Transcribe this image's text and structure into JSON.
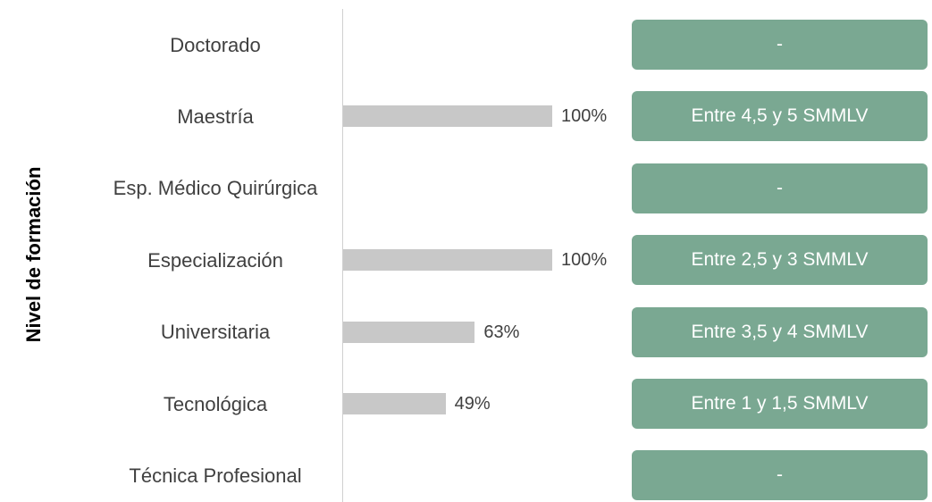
{
  "chart_data": {
    "type": "bar",
    "orientation": "horizontal",
    "y_label": "Nivel de formación",
    "categories": [
      "Doctorado",
      "Maestría",
      "Esp. Médico Quirúrgica",
      "Especialización",
      "Universitaria",
      "Tecnológica",
      "Técnica Profesional"
    ],
    "values": [
      null,
      100,
      null,
      100,
      63,
      49,
      null
    ],
    "value_labels": [
      null,
      "100%",
      null,
      "100%",
      "63%",
      "49%",
      null
    ],
    "color": "#c8c8c8",
    "xlim": [
      0,
      100
    ],
    "salary_ranges": [
      "-",
      "Entre 4,5 y 5 SMMLV",
      "-",
      "Entre 2,5 y 3 SMMLV",
      "Entre 3,5 y 4 SMMLV",
      "Entre 1 y 1,5 SMMLV",
      "-"
    ],
    "salary_color": "#7aa892"
  }
}
